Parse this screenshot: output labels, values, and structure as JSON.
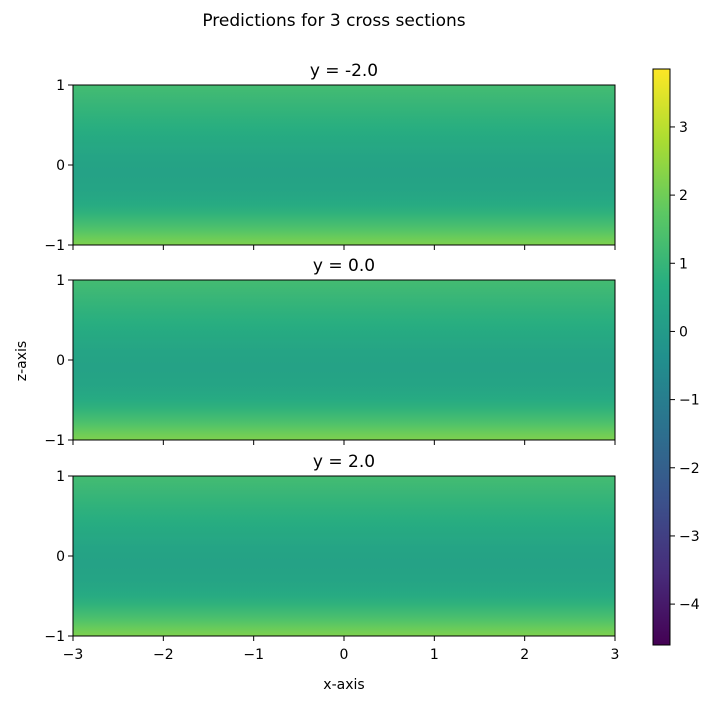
{
  "chart_data": {
    "type": "heatmap",
    "title": "Predictions for 3 cross sections",
    "xlabel": "x-axis",
    "ylabel": "z-axis",
    "xlim": [
      -3,
      3
    ],
    "ylim": [
      -1,
      1
    ],
    "x_ticks": [
      "−3",
      "−2",
      "−1",
      "0",
      "1",
      "2",
      "3"
    ],
    "x_tick_values": [
      -3,
      -2,
      -1,
      0,
      1,
      2,
      3
    ],
    "z_ticks": [
      "−1",
      "0",
      "1"
    ],
    "z_tick_values": [
      -1,
      0,
      1
    ],
    "colormap": "viridis",
    "colorbar": {
      "range": [
        -4.6,
        3.85
      ],
      "ticks": [
        "−4",
        "−3",
        "−2",
        "−1",
        "0",
        "1",
        "2",
        "3"
      ],
      "tick_values": [
        -4,
        -3,
        -2,
        -1,
        0,
        1,
        2,
        3
      ]
    },
    "panels": [
      {
        "title": "y = -2.0",
        "y": -2.0
      },
      {
        "title": "y = 0.0",
        "y": 0.0
      },
      {
        "title": "y = 2.0",
        "y": 2.0
      }
    ],
    "value_profile_over_z": {
      "z": [
        -1.0,
        -0.9,
        -0.8,
        -0.7,
        -0.6,
        -0.5,
        -0.4,
        -0.3,
        -0.2,
        -0.1,
        0.0,
        0.1,
        0.2,
        0.3,
        0.4,
        0.5,
        0.6,
        0.7,
        0.8,
        0.9,
        1.0
      ],
      "value": [
        2.2,
        1.9,
        1.5,
        1.15,
        0.85,
        0.6,
        0.45,
        0.35,
        0.3,
        0.28,
        0.3,
        0.35,
        0.45,
        0.55,
        0.65,
        0.75,
        0.85,
        0.95,
        1.05,
        1.15,
        1.25
      ]
    }
  }
}
